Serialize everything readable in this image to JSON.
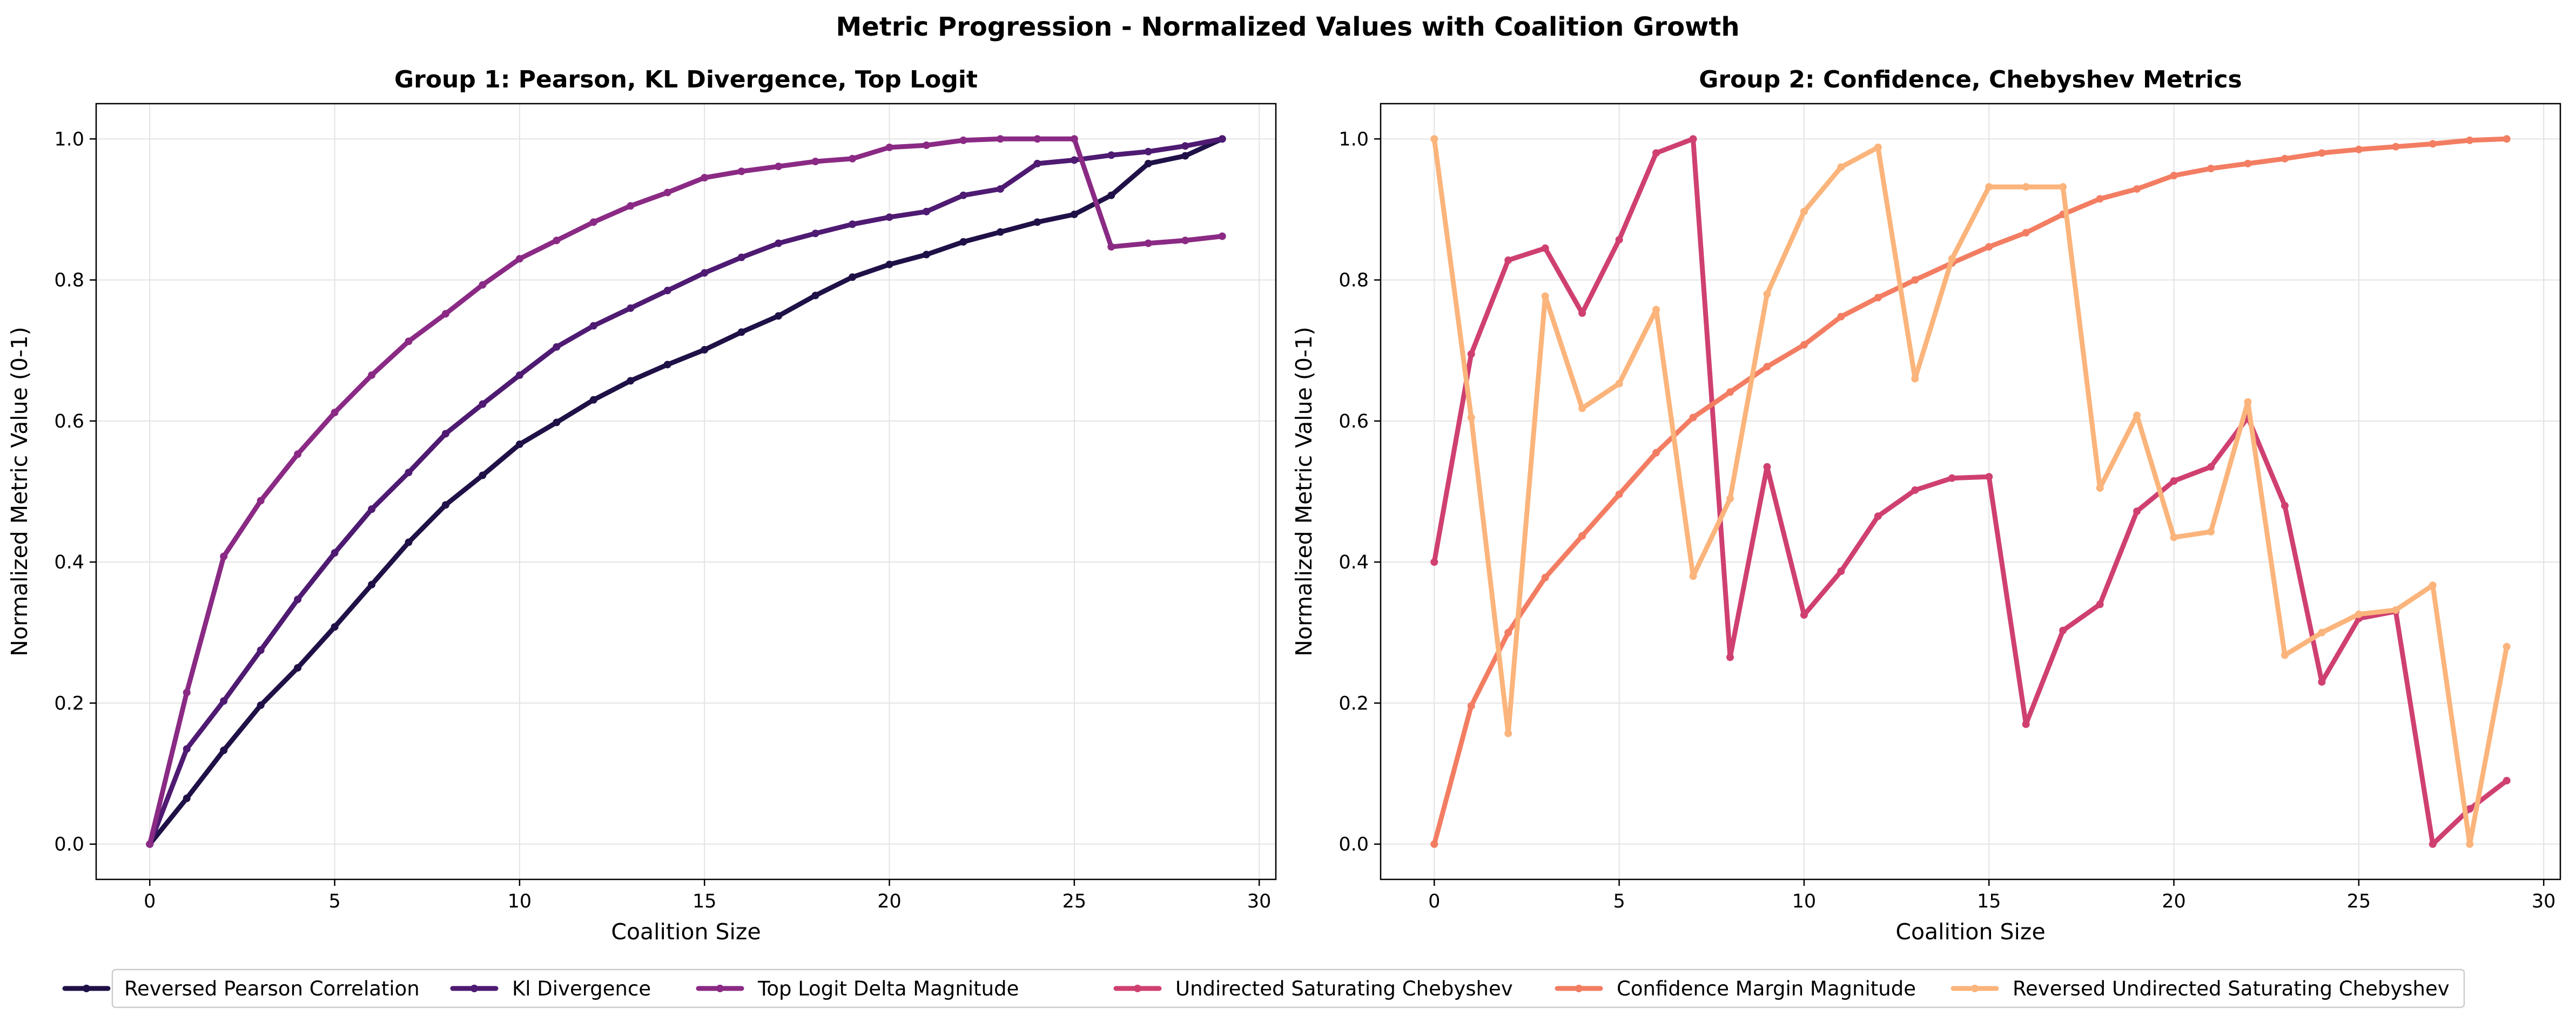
{
  "figure": {
    "title": "Metric Progression - Normalized Values with Coalition Growth"
  },
  "legend": {
    "placement": "bottom-center",
    "entries": [
      {
        "label": "Reversed Pearson Correlation",
        "color": "#1f1147"
      },
      {
        "label": "Kl Divergence",
        "color": "#4e1a72"
      },
      {
        "label": "Top Logit Delta Magnitude",
        "color": "#8a2a84"
      },
      {
        "label": "Undirected Saturating Chebyshev",
        "color": "#cf4071"
      },
      {
        "label": "Confidence Margin Magnitude",
        "color": "#f37d62"
      },
      {
        "label": "Reversed Undirected Saturating Chebyshev",
        "color": "#fbb47b"
      }
    ]
  },
  "chart_data": [
    {
      "type": "line",
      "title": "Group 1: Pearson, KL Divergence, Top Logit",
      "xlabel": "Coalition Size",
      "ylabel": "Normalized Metric Value (0-1)",
      "xlim": [
        -1.45,
        30.45
      ],
      "ylim": [
        -0.05,
        1.05
      ],
      "xticks": [
        0,
        5,
        10,
        15,
        20,
        25,
        30
      ],
      "yticks": [
        0.0,
        0.2,
        0.4,
        0.6,
        0.8,
        1.0
      ],
      "ytick_labels": [
        "0.0",
        "0.2",
        "0.4",
        "0.6",
        "0.8",
        "1.0"
      ],
      "grid": true,
      "x": [
        0,
        1,
        2,
        3,
        4,
        5,
        6,
        7,
        8,
        9,
        10,
        11,
        12,
        13,
        14,
        15,
        16,
        17,
        18,
        19,
        20,
        21,
        22,
        23,
        24,
        25,
        26,
        27,
        28,
        29
      ],
      "series": [
        {
          "name": "Reversed Pearson Correlation",
          "color": "#1f1147",
          "values": [
            0.0,
            0.065,
            0.133,
            0.197,
            0.25,
            0.308,
            0.368,
            0.428,
            0.481,
            0.523,
            0.567,
            0.598,
            0.63,
            0.657,
            0.68,
            0.701,
            0.726,
            0.749,
            0.778,
            0.804,
            0.822,
            0.836,
            0.854,
            0.868,
            0.882,
            0.893,
            0.92,
            0.965,
            0.976,
            1.0
          ]
        },
        {
          "name": "Kl Divergence",
          "color": "#4e1a72",
          "values": [
            0.0,
            0.135,
            0.203,
            0.275,
            0.347,
            0.413,
            0.475,
            0.527,
            0.582,
            0.624,
            0.665,
            0.705,
            0.735,
            0.76,
            0.785,
            0.81,
            0.832,
            0.852,
            0.866,
            0.879,
            0.889,
            0.897,
            0.92,
            0.929,
            0.965,
            0.97,
            0.977,
            0.982,
            0.99,
            1.0
          ]
        },
        {
          "name": "Top Logit Delta Magnitude",
          "color": "#8a2a84",
          "values": [
            0.0,
            0.215,
            0.408,
            0.487,
            0.553,
            0.612,
            0.665,
            0.713,
            0.752,
            0.793,
            0.83,
            0.856,
            0.882,
            0.905,
            0.924,
            0.945,
            0.954,
            0.961,
            0.968,
            0.972,
            0.988,
            0.991,
            0.998,
            1.0,
            1.0,
            1.0,
            0.847,
            0.852,
            0.856,
            0.862
          ]
        }
      ]
    },
    {
      "type": "line",
      "title": "Group 2: Confidence, Chebyshev Metrics",
      "xlabel": "Coalition Size",
      "ylabel": "Normalized Metric Value (0-1)",
      "xlim": [
        -1.45,
        30.45
      ],
      "ylim": [
        -0.05,
        1.05
      ],
      "xticks": [
        0,
        5,
        10,
        15,
        20,
        25,
        30
      ],
      "yticks": [
        0.0,
        0.2,
        0.4,
        0.6,
        0.8,
        1.0
      ],
      "ytick_labels": [
        "0.0",
        "0.2",
        "0.4",
        "0.6",
        "0.8",
        "1.0"
      ],
      "grid": true,
      "x": [
        0,
        1,
        2,
        3,
        4,
        5,
        6,
        7,
        8,
        9,
        10,
        11,
        12,
        13,
        14,
        15,
        16,
        17,
        18,
        19,
        20,
        21,
        22,
        23,
        24,
        25,
        26,
        27,
        28,
        29
      ],
      "series": [
        {
          "name": "Undirected Saturating Chebyshev",
          "color": "#cf4071",
          "values": [
            0.4,
            0.695,
            0.828,
            0.845,
            0.753,
            0.857,
            0.98,
            1.0,
            0.265,
            0.535,
            0.325,
            0.387,
            0.465,
            0.502,
            0.519,
            0.521,
            0.17,
            0.303,
            0.34,
            0.472,
            0.515,
            0.535,
            0.605,
            0.48,
            0.23,
            0.32,
            0.33,
            0.0,
            0.05,
            0.09
          ]
        },
        {
          "name": "Confidence Margin Magnitude",
          "color": "#f37d62",
          "values": [
            0.0,
            0.196,
            0.3,
            0.378,
            0.437,
            0.496,
            0.555,
            0.605,
            0.641,
            0.677,
            0.708,
            0.748,
            0.775,
            0.8,
            0.824,
            0.847,
            0.867,
            0.893,
            0.915,
            0.929,
            0.948,
            0.958,
            0.965,
            0.972,
            0.98,
            0.985,
            0.989,
            0.993,
            0.998,
            1.0
          ]
        },
        {
          "name": "Reversed Undirected Saturating Chebyshev",
          "color": "#fbb47b",
          "values": [
            1.0,
            0.605,
            0.157,
            0.777,
            0.618,
            0.653,
            0.758,
            0.38,
            0.49,
            0.78,
            0.897,
            0.96,
            0.988,
            0.66,
            0.83,
            0.932,
            0.932,
            0.932,
            0.505,
            0.608,
            0.435,
            0.443,
            0.627,
            0.268,
            0.3,
            0.326,
            0.332,
            0.367,
            0.0,
            0.28
          ]
        }
      ]
    }
  ]
}
